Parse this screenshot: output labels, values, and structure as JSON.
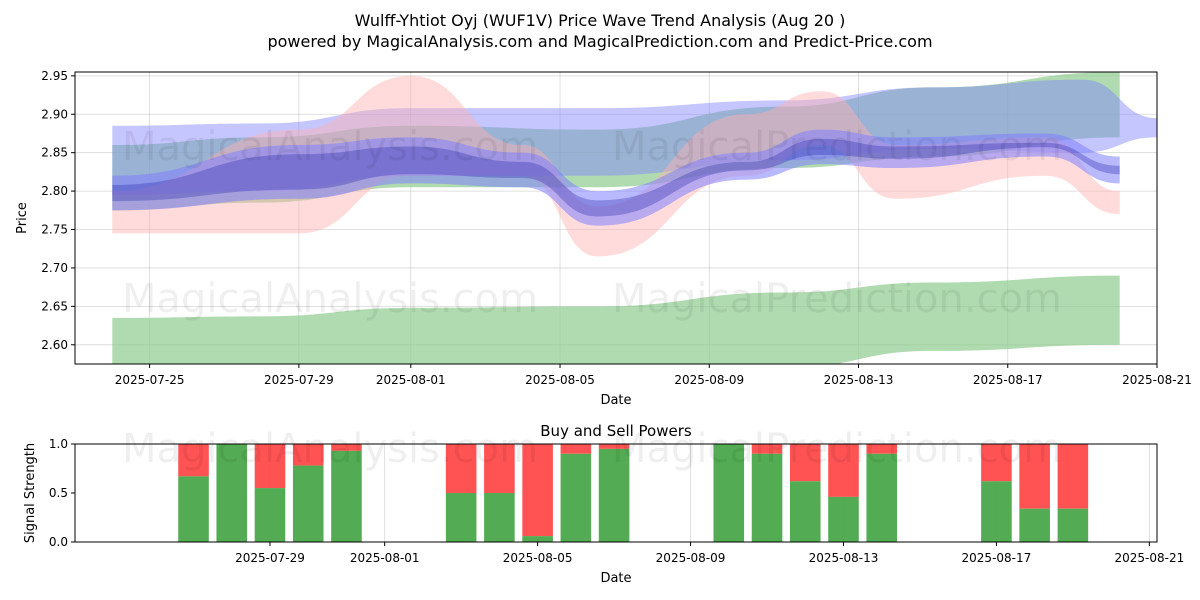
{
  "title": "Wulff-Yhtiot Oyj (WUF1V) Price Wave Trend Analysis (Aug 20 )",
  "subtitle": "powered by MagicalAnalysis.com and MagicalPrediction.com and Predict-Price.com",
  "watermarks": [
    "MagicalAnalysis.com",
    "MagicalPrediction.com"
  ],
  "colors": {
    "green": "#4aa84a",
    "red": "#ff4a4a",
    "blue": "#4a4aff",
    "band_green": "#8fcc8f",
    "band_red": "#ffb0b0",
    "band_blue": "#8080ff"
  },
  "chart_data": [
    {
      "type": "area",
      "title": "",
      "xlabel": "Date",
      "ylabel": "Price",
      "ylim": [
        2.575,
        2.955
      ],
      "xlim": [
        "2025-07-23",
        "2025-08-21"
      ],
      "grid": true,
      "x_ticks": [
        "2025-07-25",
        "2025-07-29",
        "2025-08-01",
        "2025-08-05",
        "2025-08-09",
        "2025-08-13",
        "2025-08-17",
        "2025-08-21"
      ],
      "y_ticks": [
        "2.60",
        "2.65",
        "2.70",
        "2.75",
        "2.80",
        "2.85",
        "2.90",
        "2.95"
      ],
      "series": [
        {
          "color": "green",
          "x": [
            "2025-07-24",
            "2025-07-28",
            "2025-08-01",
            "2025-08-06",
            "2025-08-11",
            "2025-08-15",
            "2025-08-20"
          ],
          "upper": [
            2.635,
            2.637,
            2.648,
            2.65,
            2.668,
            2.681,
            2.69
          ],
          "lower": [
            2.57,
            2.57,
            2.57,
            2.57,
            2.57,
            2.592,
            2.6
          ]
        },
        {
          "color": "green",
          "x": [
            "2025-07-24",
            "2025-07-28",
            "2025-08-01",
            "2025-08-06",
            "2025-08-11",
            "2025-08-15",
            "2025-08-20"
          ],
          "upper": [
            2.86,
            2.87,
            2.885,
            2.88,
            2.91,
            2.935,
            2.955
          ],
          "lower": [
            2.775,
            2.785,
            2.805,
            2.805,
            2.83,
            2.845,
            2.87
          ]
        },
        {
          "color": "blue",
          "x": [
            "2025-07-24",
            "2025-07-28",
            "2025-08-01",
            "2025-08-06",
            "2025-08-11",
            "2025-08-15",
            "2025-08-19",
            "2025-08-21"
          ],
          "upper": [
            2.885,
            2.888,
            2.908,
            2.908,
            2.918,
            2.935,
            2.945,
            2.895
          ]
        },
        {
          "color": "blue",
          "x": [
            "2025-07-24",
            "2025-07-28",
            "2025-08-01",
            "2025-08-06",
            "2025-08-11",
            "2025-08-15",
            "2025-08-19",
            "2025-08-21"
          ],
          "lower": [
            2.795,
            2.8,
            2.82,
            2.82,
            2.84,
            2.855,
            2.85,
            2.87
          ]
        },
        {
          "color": "red",
          "x": [
            "2025-07-24",
            "2025-07-29",
            "2025-08-01",
            "2025-08-04",
            "2025-08-06",
            "2025-08-10",
            "2025-08-12",
            "2025-08-14",
            "2025-08-18",
            "2025-08-20"
          ],
          "upper": [
            2.8,
            2.88,
            2.95,
            2.86,
            2.78,
            2.9,
            2.93,
            2.86,
            2.87,
            2.8
          ],
          "lower": [
            2.745,
            2.745,
            2.82,
            2.82,
            2.715,
            2.82,
            2.86,
            2.79,
            2.82,
            2.77
          ]
        },
        {
          "color": "blue",
          "x": [
            "2025-07-24",
            "2025-07-29",
            "2025-08-01",
            "2025-08-04",
            "2025-08-06",
            "2025-08-10",
            "2025-08-12",
            "2025-08-14",
            "2025-08-18",
            "2025-08-20"
          ],
          "upper": [
            2.82,
            2.86,
            2.87,
            2.85,
            2.8,
            2.85,
            2.88,
            2.87,
            2.875,
            2.845
          ],
          "lower": [
            2.775,
            2.79,
            2.81,
            2.805,
            2.755,
            2.815,
            2.835,
            2.83,
            2.845,
            2.81
          ]
        }
      ]
    },
    {
      "type": "bar",
      "title": "Buy and Sell Powers",
      "xlabel": "Date",
      "ylabel": "Signal Strength",
      "ylim": [
        0,
        1
      ],
      "xlim": [
        "2025-07-24",
        "2025-08-21"
      ],
      "x_ticks": [
        "2025-07-29",
        "2025-08-01",
        "2025-08-05",
        "2025-08-09",
        "2025-08-13",
        "2025-08-17",
        "2025-08-21"
      ],
      "y_ticks": [
        "0.0",
        "0.5",
        "1.0"
      ],
      "dates": [
        "2025-07-27",
        "2025-07-28",
        "2025-07-29",
        "2025-07-30",
        "2025-07-31",
        "2025-08-03",
        "2025-08-04",
        "2025-08-05",
        "2025-08-06",
        "2025-08-07",
        "2025-08-10",
        "2025-08-11",
        "2025-08-12",
        "2025-08-13",
        "2025-08-14",
        "2025-08-17",
        "2025-08-18",
        "2025-08-19"
      ],
      "buy": [
        0.67,
        1.0,
        0.55,
        0.78,
        0.93,
        0.5,
        0.5,
        0.06,
        0.9,
        0.95,
        1.0,
        0.9,
        0.62,
        0.46,
        0.9,
        0.62,
        0.34,
        0.34
      ]
    }
  ]
}
